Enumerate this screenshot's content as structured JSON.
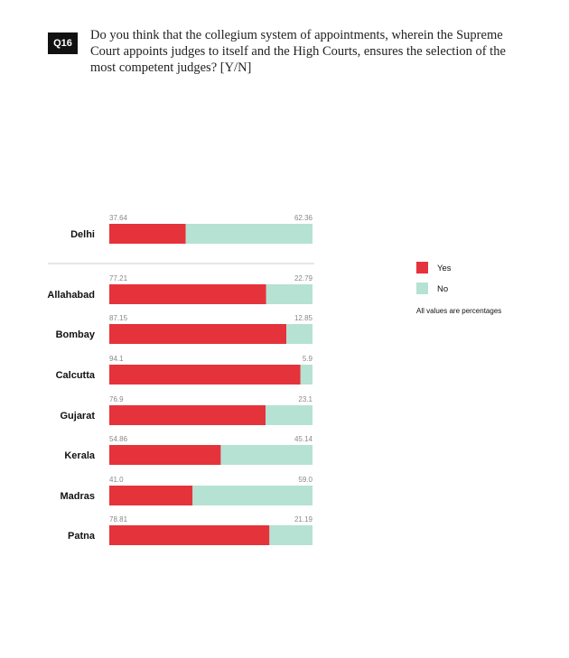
{
  "header": {
    "badge": "Q16",
    "question": "Do you think that the collegium system of appointments, wherein the Supreme Court appoints judges to itself and the High Courts, ensures the selection of the most competent judges? [Y/N]"
  },
  "legend": {
    "yes_label": "Yes",
    "no_label": "No",
    "note": "All values are percentages"
  },
  "colors": {
    "yes": "#e5333b",
    "no": "#b5e2d3"
  },
  "chart_data": {
    "type": "bar",
    "orientation": "horizontal",
    "stacked": true,
    "categories": [
      "Delhi",
      "Allahabad",
      "Bombay",
      "Calcutta",
      "Gujarat",
      "Kerala",
      "Madras",
      "Patna"
    ],
    "value_labels": {
      "yes": [
        "37.64",
        "77.21",
        "87.15",
        "94.1",
        "76.9",
        "54.86",
        "41.0",
        "78.81"
      ],
      "no": [
        "62.36",
        "22.79",
        "12.85",
        "5.9",
        "23.1",
        "45.14",
        "59.0",
        "21.19"
      ]
    },
    "series": [
      {
        "name": "Yes",
        "values": [
          37.64,
          77.21,
          87.15,
          94.1,
          76.9,
          54.86,
          41.0,
          78.81
        ]
      },
      {
        "name": "No",
        "values": [
          62.36,
          22.79,
          12.85,
          5.9,
          23.1,
          45.14,
          59.0,
          21.19
        ]
      }
    ],
    "xlim": [
      0,
      100
    ],
    "grid": false,
    "legend_position": "right"
  }
}
